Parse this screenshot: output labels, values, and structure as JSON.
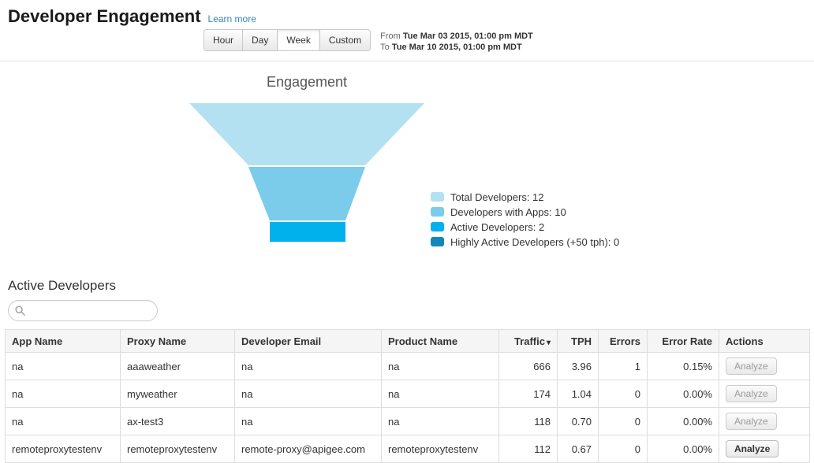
{
  "page": {
    "title": "Developer Engagement",
    "learn_more_label": "Learn more"
  },
  "toolbar": {
    "range_buttons": [
      {
        "label": "Hour",
        "active": false
      },
      {
        "label": "Day",
        "active": false
      },
      {
        "label": "Week",
        "active": true
      },
      {
        "label": "Custom",
        "active": false
      }
    ],
    "from_label": "From",
    "from_value": "Tue Mar 03 2015, 01:00 pm MDT",
    "to_label": "To",
    "to_value": "Tue Mar 10 2015, 01:00 pm MDT"
  },
  "chart": {
    "title": "Engagement"
  },
  "chart_data": {
    "type": "funnel",
    "title": "Engagement",
    "legend_position": "right",
    "stages": [
      {
        "label": "Total Developers",
        "value": 12,
        "color": "#b3e1f2"
      },
      {
        "label": "Developers with Apps",
        "value": 10,
        "color": "#7accea"
      },
      {
        "label": "Active Developers",
        "value": 2,
        "color": "#00b1ec"
      },
      {
        "label": "Highly Active Developers (+50 tph)",
        "value": 0,
        "color": "#1287b8"
      }
    ]
  },
  "active_developers": {
    "heading": "Active Developers",
    "search_value": "",
    "table": {
      "columns": [
        {
          "label": "App Name",
          "align": "left"
        },
        {
          "label": "Proxy Name",
          "align": "left"
        },
        {
          "label": "Developer Email",
          "align": "left"
        },
        {
          "label": "Product Name",
          "align": "left"
        },
        {
          "label": "Traffic",
          "align": "right",
          "sort": "desc"
        },
        {
          "label": "TPH",
          "align": "right"
        },
        {
          "label": "Errors",
          "align": "right"
        },
        {
          "label": "Error Rate",
          "align": "right"
        },
        {
          "label": "Actions",
          "align": "left"
        }
      ],
      "rows": [
        {
          "app_name": "na",
          "proxy_name": "aaaweather",
          "developer_email": "na",
          "product_name": "na",
          "traffic": "666",
          "tph": "3.96",
          "errors": "1",
          "error_rate": "0.15%",
          "action": "Analyze"
        },
        {
          "app_name": "na",
          "proxy_name": "myweather",
          "developer_email": "na",
          "product_name": "na",
          "traffic": "174",
          "tph": "1.04",
          "errors": "0",
          "error_rate": "0.00%",
          "action": "Analyze"
        },
        {
          "app_name": "na",
          "proxy_name": "ax-test3",
          "developer_email": "na",
          "product_name": "na",
          "traffic": "118",
          "tph": "0.70",
          "errors": "0",
          "error_rate": "0.00%",
          "action": "Analyze"
        },
        {
          "app_name": "remoteproxytestenv",
          "proxy_name": "remoteproxytestenv",
          "developer_email": "remote-proxy@apigee.com",
          "product_name": "remoteproxytestenv",
          "traffic": "112",
          "tph": "0.67",
          "errors": "0",
          "error_rate": "0.00%",
          "action": "Analyze"
        }
      ]
    }
  }
}
